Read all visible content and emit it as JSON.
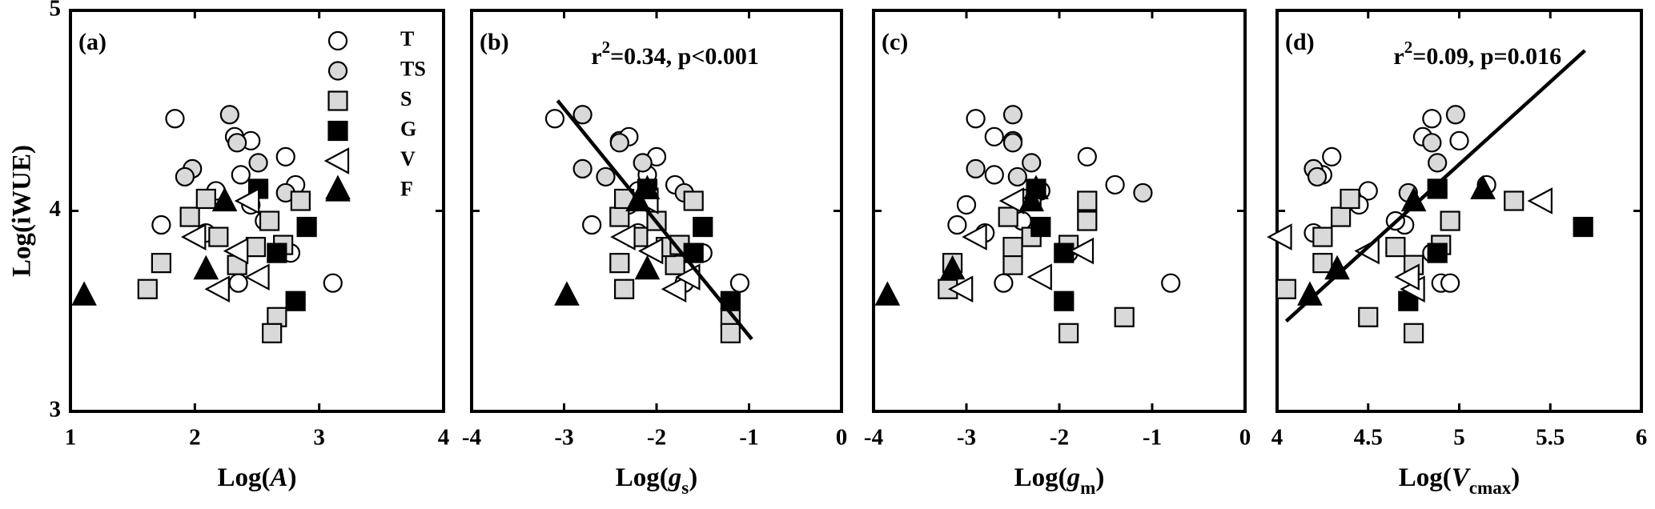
{
  "chart_data": [
    {
      "type": "scatter",
      "panel_label": "(a)",
      "xlabel": [
        {
          "text": "Log(",
          "style": "normal"
        },
        {
          "text": "A",
          "style": "italic"
        },
        {
          "text": ")",
          "style": "normal"
        }
      ],
      "ylabel": "Log(iWUE)",
      "xlim": [
        1,
        4
      ],
      "xticks": [
        1,
        2,
        3,
        4
      ],
      "ylim": [
        3,
        5
      ],
      "yticks": [
        3,
        4,
        5
      ],
      "ytick_labels": true,
      "legend": "upper-right",
      "series": [
        {
          "name": "T",
          "marker": "circle",
          "color": "#ffffff",
          "x": [
            1.84,
            1.73,
            2.45,
            2.32,
            2.73,
            2.37,
            2.17,
            2.56,
            2.77,
            2.35,
            3.11,
            2.81,
            2.45,
            2.09
          ],
          "values": [
            4.46,
            3.93,
            4.35,
            4.37,
            4.27,
            4.18,
            4.1,
            3.95,
            3.79,
            3.64,
            3.64,
            4.13,
            4.03,
            3.89
          ]
        },
        {
          "name": "TS",
          "marker": "circle",
          "color": "#d9d9d9",
          "x": [
            2.28,
            1.98,
            1.92,
            2.51,
            2.34,
            2.73
          ],
          "values": [
            4.48,
            4.21,
            4.17,
            4.24,
            4.34,
            4.09
          ]
        },
        {
          "name": "S",
          "marker": "square",
          "color": "#d9d9d9",
          "x": [
            1.62,
            1.73,
            1.96,
            2.09,
            2.19,
            2.34,
            2.49,
            2.6,
            2.66,
            2.62,
            2.85,
            2.71
          ],
          "values": [
            3.61,
            3.74,
            3.97,
            4.06,
            3.87,
            3.73,
            3.82,
            3.95,
            3.47,
            3.39,
            4.05,
            3.83
          ]
        },
        {
          "name": "G",
          "marker": "square",
          "color": "#000000",
          "x": [
            2.51,
            2.9,
            2.66,
            2.81
          ],
          "values": [
            4.11,
            3.92,
            3.79,
            3.55
          ]
        },
        {
          "name": "V",
          "marker": "triangle-left",
          "color": "#ffffff",
          "x": [
            2.0,
            2.19,
            2.34,
            2.51,
            2.43
          ],
          "values": [
            3.87,
            3.61,
            3.8,
            3.67,
            4.05
          ]
        },
        {
          "name": "F",
          "marker": "triangle-up",
          "color": "#000000",
          "x": [
            1.11,
            2.09,
            2.24,
            3.15
          ],
          "values": [
            3.58,
            3.71,
            4.05,
            4.11
          ]
        }
      ]
    },
    {
      "type": "scatter",
      "panel_label": "(b)",
      "xlabel": [
        {
          "text": "Log(",
          "style": "normal"
        },
        {
          "text": "g",
          "style": "italic"
        },
        {
          "text": "s",
          "style": "sub"
        },
        {
          "text": ")",
          "style": "normal"
        }
      ],
      "annotation": [
        {
          "text": "r",
          "style": "normal"
        },
        {
          "text": "2",
          "style": "sup"
        },
        {
          "text": "=0.34, p<0.001",
          "style": "normal"
        }
      ],
      "xlim": [
        -4,
        0
      ],
      "xticks": [
        -4,
        -3,
        -2,
        -1,
        0
      ],
      "ylim": [
        3,
        5
      ],
      "yticks": [
        3,
        4,
        5
      ],
      "ytick_labels": false,
      "fit": {
        "x": [
          -3.07,
          -0.97
        ],
        "y": [
          4.55,
          3.36
        ]
      },
      "series": [
        {
          "marker": "circle",
          "color": "#ffffff",
          "x": [
            -3.1,
            -2.7,
            -2.4,
            -2.3,
            -2.0,
            -2.1,
            -2.2,
            -2.0,
            -1.5,
            -1.7,
            -1.1,
            -1.8,
            -2.3,
            -2.2
          ],
          "values": [
            4.46,
            3.93,
            4.35,
            4.37,
            4.27,
            4.18,
            4.1,
            3.95,
            3.79,
            3.64,
            3.64,
            4.13,
            4.03,
            3.89
          ]
        },
        {
          "marker": "circle",
          "color": "#d9d9d9",
          "x": [
            -2.8,
            -2.8,
            -2.55,
            -2.15,
            -2.4,
            -1.7
          ],
          "values": [
            4.48,
            4.21,
            4.17,
            4.24,
            4.34,
            4.09
          ]
        },
        {
          "marker": "square",
          "color": "#d9d9d9",
          "x": [
            -2.35,
            -2.4,
            -2.4,
            -2.35,
            -2.2,
            -1.8,
            -1.9,
            -2.0,
            -1.2,
            -1.2,
            -1.6,
            -1.75
          ],
          "values": [
            3.61,
            3.74,
            3.97,
            4.06,
            3.87,
            3.73,
            3.82,
            3.95,
            3.47,
            3.39,
            4.05,
            3.83
          ]
        },
        {
          "marker": "square",
          "color": "#000000",
          "x": [
            -2.1,
            -1.5,
            -1.6,
            -1.2
          ],
          "values": [
            4.11,
            3.92,
            3.79,
            3.55
          ]
        },
        {
          "marker": "triangle-left",
          "color": "#ffffff",
          "x": [
            -2.35,
            -1.8,
            -2.05,
            -1.65,
            -2.1
          ],
          "values": [
            3.87,
            3.61,
            3.8,
            3.67,
            4.05
          ]
        },
        {
          "marker": "triangle-up",
          "color": "#000000",
          "x": [
            -2.97,
            -2.1,
            -2.2,
            -2.1
          ],
          "values": [
            3.58,
            3.71,
            4.05,
            4.11
          ]
        }
      ]
    },
    {
      "type": "scatter",
      "panel_label": "(c)",
      "xlabel": [
        {
          "text": "Log(",
          "style": "normal"
        },
        {
          "text": "g",
          "style": "italic"
        },
        {
          "text": "m",
          "style": "sub"
        },
        {
          "text": ")",
          "style": "normal"
        }
      ],
      "xlim": [
        -4,
        0
      ],
      "xticks": [
        -4,
        -3,
        -2,
        -1,
        0
      ],
      "ylim": [
        3,
        5
      ],
      "yticks": [
        3,
        4,
        5
      ],
      "ytick_labels": false,
      "series": [
        {
          "marker": "circle",
          "color": "#ffffff",
          "x": [
            -2.9,
            -3.1,
            -2.5,
            -2.7,
            -1.7,
            -2.7,
            -2.2,
            -2.4,
            -1.9,
            -2.6,
            -0.8,
            -1.4,
            -3.0,
            -2.8
          ],
          "values": [
            4.46,
            3.93,
            4.35,
            4.37,
            4.27,
            4.18,
            4.1,
            3.95,
            3.79,
            3.64,
            3.64,
            4.13,
            4.03,
            3.89
          ]
        },
        {
          "marker": "circle",
          "color": "#d9d9d9",
          "x": [
            -2.5,
            -2.9,
            -2.45,
            -2.3,
            -2.5,
            -1.1
          ],
          "values": [
            4.48,
            4.21,
            4.17,
            4.24,
            4.34,
            4.09
          ]
        },
        {
          "marker": "square",
          "color": "#d9d9d9",
          "x": [
            -3.2,
            -3.15,
            -2.55,
            -2.3,
            -2.3,
            -2.5,
            -2.5,
            -1.7,
            -1.3,
            -1.9,
            -1.7,
            -1.9
          ],
          "values": [
            3.61,
            3.74,
            3.97,
            4.06,
            3.87,
            3.73,
            3.82,
            3.95,
            3.47,
            3.39,
            4.05,
            3.83
          ]
        },
        {
          "marker": "square",
          "color": "#000000",
          "x": [
            -2.25,
            -2.2,
            -1.95,
            -1.95
          ],
          "values": [
            4.11,
            3.92,
            3.79,
            3.55
          ]
        },
        {
          "marker": "triangle-left",
          "color": "#ffffff",
          "x": [
            -2.9,
            -3.05,
            -1.75,
            -2.2,
            -2.5
          ],
          "values": [
            3.87,
            3.61,
            3.8,
            3.67,
            4.05
          ]
        },
        {
          "marker": "triangle-up",
          "color": "#000000",
          "x": [
            -3.85,
            -3.15,
            -2.3,
            -2.25
          ],
          "values": [
            3.58,
            3.71,
            4.05,
            4.11
          ]
        }
      ]
    },
    {
      "type": "scatter",
      "panel_label": "(d)",
      "xlabel": [
        {
          "text": "Log(",
          "style": "normal"
        },
        {
          "text": "V",
          "style": "italic"
        },
        {
          "text": "cmax",
          "style": "sub"
        },
        {
          "text": ")",
          "style": "normal"
        }
      ],
      "annotation": [
        {
          "text": "r",
          "style": "normal"
        },
        {
          "text": "2",
          "style": "sup"
        },
        {
          "text": "=0.09, p=0.016",
          "style": "normal"
        }
      ],
      "xlim": [
        4,
        6
      ],
      "xticks": [
        4,
        4.5,
        5,
        5.5,
        6
      ],
      "ylim": [
        3,
        5
      ],
      "yticks": [
        3,
        4,
        5
      ],
      "ytick_labels": false,
      "fit": {
        "x": [
          4.05,
          5.69
        ],
        "y": [
          3.45,
          4.8
        ]
      },
      "series": [
        {
          "marker": "circle",
          "color": "#ffffff",
          "x": [
            4.85,
            4.7,
            5.0,
            4.8,
            4.3,
            4.25,
            4.5,
            4.65,
            4.85,
            4.9,
            4.95,
            5.15,
            4.45,
            4.2
          ],
          "values": [
            4.46,
            3.93,
            4.35,
            4.37,
            4.27,
            4.18,
            4.1,
            3.95,
            3.79,
            3.64,
            3.64,
            4.13,
            4.03,
            3.89
          ]
        },
        {
          "marker": "circle",
          "color": "#d9d9d9",
          "x": [
            4.98,
            4.2,
            4.22,
            4.88,
            4.85,
            4.72
          ],
          "values": [
            4.48,
            4.21,
            4.17,
            4.24,
            4.34,
            4.09
          ]
        },
        {
          "marker": "square",
          "color": "#d9d9d9",
          "x": [
            4.05,
            4.25,
            4.35,
            4.4,
            4.25,
            4.75,
            4.65,
            4.95,
            4.5,
            4.75,
            5.3,
            4.9
          ],
          "values": [
            3.61,
            3.74,
            3.97,
            4.06,
            3.87,
            3.73,
            3.82,
            3.95,
            3.47,
            3.39,
            4.05,
            3.83
          ]
        },
        {
          "marker": "square",
          "color": "#000000",
          "x": [
            4.88,
            5.68,
            4.88,
            4.72
          ],
          "values": [
            4.11,
            3.92,
            3.79,
            3.55
          ]
        },
        {
          "marker": "triangle-left",
          "color": "#ffffff",
          "x": [
            4.02,
            4.75,
            4.5,
            4.72,
            5.45
          ],
          "values": [
            3.87,
            3.61,
            3.8,
            3.67,
            4.05
          ]
        },
        {
          "marker": "triangle-up",
          "color": "#000000",
          "x": [
            4.18,
            4.33,
            4.75,
            5.13
          ],
          "values": [
            3.58,
            3.71,
            4.05,
            4.11
          ]
        }
      ]
    }
  ]
}
